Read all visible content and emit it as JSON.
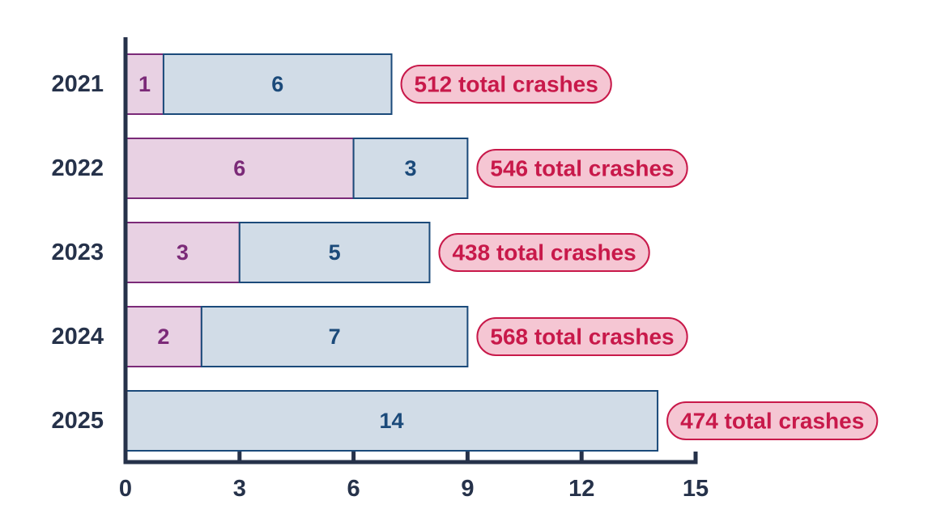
{
  "chart_data": {
    "type": "bar",
    "orientation": "horizontal",
    "stacked": true,
    "categories": [
      "2021",
      "2022",
      "2023",
      "2024",
      "2025"
    ],
    "series": [
      {
        "values": [
          1,
          6,
          3,
          2,
          0
        ],
        "color": "#7b2a78",
        "fill": "#e8d1e3"
      },
      {
        "values": [
          6,
          3,
          5,
          7,
          14
        ],
        "color": "#1b4a7a",
        "fill": "#d1dce7"
      }
    ],
    "annotations": [
      "512 total crashes",
      "546 total crashes",
      "438 total crashes",
      "568 total crashes",
      "474 total crashes"
    ],
    "xticks": [
      0,
      3,
      6,
      9,
      12,
      15
    ],
    "xlim": [
      0,
      15
    ],
    "title": "",
    "xlabel": "",
    "ylabel": "",
    "grid": false,
    "legend": "none",
    "colors": {
      "axis": "#26324a",
      "annotation_text": "#c8194a",
      "annotation_fill": "#f5c6d3",
      "annotation_border": "#c8194a"
    }
  }
}
